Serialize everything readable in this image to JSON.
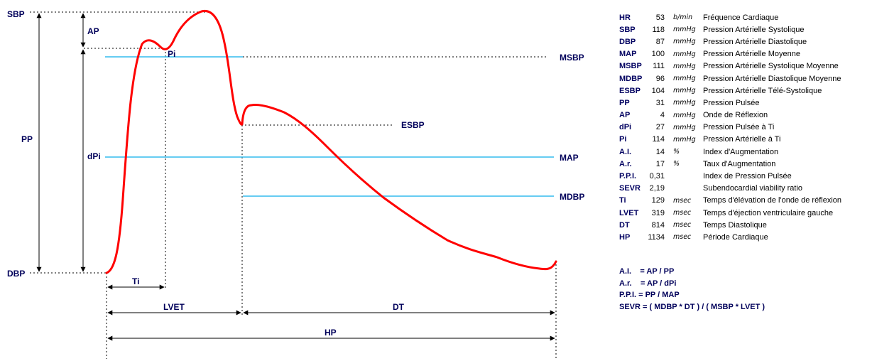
{
  "diagram": {
    "labels": {
      "sbp": "SBP",
      "dbp": "DBP",
      "ap": "AP",
      "pp": "PP",
      "dpi": "dPi",
      "pi": "Pi",
      "msbp": "MSBP",
      "esbp": "ESBP",
      "map": "MAP",
      "mdbp": "MDBP",
      "ti": "Ti",
      "lvet": "LVET",
      "dt": "DT",
      "hp": "HP"
    },
    "colors": {
      "curve": "#ff0000",
      "reference_lines": "#33bbee",
      "labels": "#00005a",
      "dashed": "#000000"
    }
  },
  "legend": [
    {
      "abbr": "HR",
      "value": "53",
      "unit": "b/min",
      "desc": "Fréquence Cardiaque"
    },
    {
      "abbr": "SBP",
      "value": "118",
      "unit": "mmHg",
      "desc": "Pression Artérielle Systolique"
    },
    {
      "abbr": "DBP",
      "value": "87",
      "unit": "mmHg",
      "desc": "Pression Artérielle Diastolique"
    },
    {
      "abbr": "MAP",
      "value": "100",
      "unit": "mmHg",
      "desc": "Pression Artérielle Moyenne"
    },
    {
      "abbr": "MSBP",
      "value": "111",
      "unit": "mmHg",
      "desc": "Pression Artérielle Systolique Moyenne"
    },
    {
      "abbr": "MDBP",
      "value": "96",
      "unit": "mmHg",
      "desc": "Pression Artérielle Diastolique Moyenne"
    },
    {
      "abbr": "ESBP",
      "value": "104",
      "unit": "mmHg",
      "desc": "Pression Artérielle Télé-Systolique"
    },
    {
      "abbr": "PP",
      "value": "31",
      "unit": "mmHg",
      "desc": "Pression Pulsée"
    },
    {
      "abbr": "AP",
      "value": "4",
      "unit": "mmHg",
      "desc": "Onde de Réflexion"
    },
    {
      "abbr": "dPi",
      "value": "27",
      "unit": "mmHg",
      "desc": "Pression Pulsée à Ti"
    },
    {
      "abbr": "Pi",
      "value": "114",
      "unit": "mmHg",
      "desc": "Pression Artérielle à Ti"
    },
    {
      "abbr": "A.I.",
      "value": "14",
      "unit": "%",
      "desc": "Index d'Augmentation"
    },
    {
      "abbr": "A.r.",
      "value": "17",
      "unit": "%",
      "desc": "Taux d'Augmentation"
    },
    {
      "abbr": "P.P.I.",
      "value": "0,31",
      "unit": "",
      "desc": "Index de Pression Pulsée"
    },
    {
      "abbr": "SEVR",
      "value": "2,19",
      "unit": "",
      "desc": "Subendocardial viability ratio"
    },
    {
      "abbr": "Ti",
      "value": "129",
      "unit": "msec",
      "desc": "Temps d'élévation de l'onde de réflexion"
    },
    {
      "abbr": "LVET",
      "value": "319",
      "unit": "msec",
      "desc": "Temps d'éjection ventriculaire gauche"
    },
    {
      "abbr": "DT",
      "value": "814",
      "unit": "msec",
      "desc": "Temps Diastolique"
    },
    {
      "abbr": "HP",
      "value": "1134",
      "unit": "msec",
      "desc": "Période Cardiaque"
    }
  ],
  "formulas": [
    "A.I.    = AP / PP",
    "A.r.    = AP / dPi",
    "P.P.I. = PP / MAP",
    "SEVR = ( MDBP * DT ) / ( MSBP * LVET )"
  ]
}
